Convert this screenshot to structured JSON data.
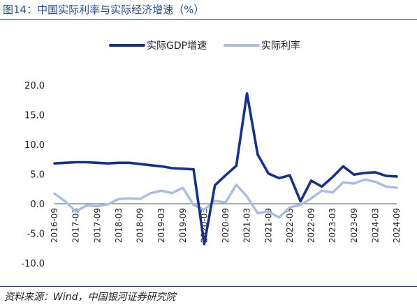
{
  "header": {
    "title": "图14：中国实际利率与实际经济增速（%）"
  },
  "footer": {
    "source": "资料来源：Wind，中国银河证券研究院"
  },
  "colors": {
    "gdp": "#15318e",
    "rate": "#a7bde6",
    "title": "#1f4e9b",
    "rule": "#1f3f8f",
    "axis": "#555555"
  },
  "chart_data": {
    "type": "line",
    "title": "",
    "xlabel": "",
    "ylabel": "",
    "ylim": [
      -10,
      20
    ],
    "yticks": [
      20.0,
      15.0,
      10.0,
      5.0,
      0.0,
      -5.0,
      -10.0
    ],
    "ytick_labels": [
      "20.0",
      "15.0",
      "10.0",
      "5.0",
      "0.0",
      "-5.0",
      "-10.0"
    ],
    "grid": false,
    "legend_position": "top-center",
    "x": [
      "2016-09",
      "2016-12",
      "2017-03",
      "2017-06",
      "2017-09",
      "2017-12",
      "2018-03",
      "2018-06",
      "2018-09",
      "2018-12",
      "2019-03",
      "2019-06",
      "2019-09",
      "2019-12",
      "2020-03",
      "2020-06",
      "2020-09",
      "2020-12",
      "2021-03",
      "2021-06",
      "2021-09",
      "2021-12",
      "2022-03",
      "2022-06",
      "2022-09",
      "2022-12",
      "2023-03",
      "2023-06",
      "2023-09",
      "2023-12",
      "2024-03",
      "2024-06",
      "2024-09"
    ],
    "xtick_labels": [
      "2016-09",
      "2017-03",
      "2017-09",
      "2018-03",
      "2018-09",
      "2019-03",
      "2019-09",
      "2020-03",
      "2020-09",
      "2021-03",
      "2021-09",
      "2022-03",
      "2022-09",
      "2023-03",
      "2023-09",
      "2024-03",
      "2024-09"
    ],
    "series": [
      {
        "name": "实际GDP增速",
        "color": "#15318e",
        "values": [
          6.8,
          6.9,
          7.0,
          7.0,
          6.9,
          6.8,
          6.9,
          6.9,
          6.7,
          6.5,
          6.3,
          6.0,
          5.9,
          5.8,
          -6.8,
          3.1,
          4.8,
          6.4,
          18.6,
          8.3,
          5.1,
          4.3,
          4.8,
          0.4,
          3.9,
          2.9,
          4.5,
          6.3,
          4.9,
          5.2,
          5.3,
          4.7,
          4.6
        ]
      },
      {
        "name": "实际利率",
        "color": "#a7bde6",
        "values": [
          1.7,
          0.4,
          -1.3,
          -0.3,
          -0.4,
          -0.1,
          0.8,
          0.9,
          0.8,
          1.8,
          2.2,
          1.8,
          2.7,
          -0.2,
          -1.0,
          0.5,
          0.2,
          3.2,
          1.2,
          -1.6,
          -1.3,
          -2.3,
          -0.6,
          -0.2,
          0.9,
          2.2,
          1.9,
          3.6,
          3.4,
          4.1,
          3.7,
          2.9,
          2.7
        ]
      }
    ]
  }
}
